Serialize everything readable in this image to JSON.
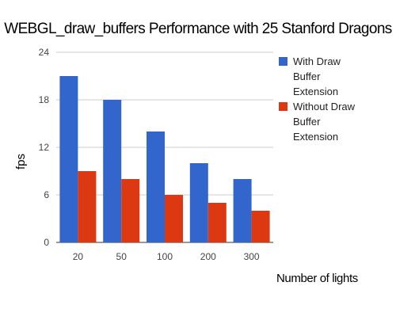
{
  "chart_data": {
    "type": "bar",
    "title": "WEBGL_draw_buffers Performance with 25 Stanford Dragons",
    "xlabel": "Number of lights",
    "ylabel": "fps",
    "categories": [
      "20",
      "50",
      "100",
      "200",
      "300"
    ],
    "yticks": [
      "0",
      "6",
      "12",
      "18",
      "24"
    ],
    "ylim": [
      0,
      24
    ],
    "grid": true,
    "legend_position": "right",
    "series": [
      {
        "name_lines": [
          "With Draw",
          "Buffer",
          "Extension"
        ],
        "color": "#3366cc",
        "values": [
          21,
          18,
          14,
          10,
          8
        ]
      },
      {
        "name_lines": [
          "Without Draw",
          "Buffer",
          "Extension"
        ],
        "color": "#dc3912",
        "values": [
          9,
          8,
          6,
          5,
          4
        ]
      }
    ]
  }
}
